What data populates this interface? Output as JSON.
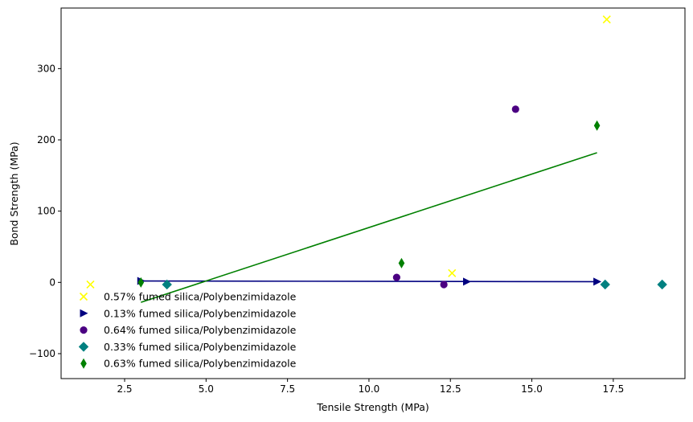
{
  "chart_data": {
    "type": "scatter",
    "title": "",
    "xlabel": "Tensile Strength (MPa)",
    "ylabel": "Bond Strength (MPa)",
    "xlim": [
      0.55,
      19.7
    ],
    "ylim": [
      -135,
      385
    ],
    "xticks": [
      2.5,
      5.0,
      7.5,
      10.0,
      12.5,
      15.0,
      17.5
    ],
    "xtick_labels": [
      "2.5",
      "5.0",
      "7.5",
      "10.0",
      "12.5",
      "15.0",
      "17.5"
    ],
    "yticks": [
      -100,
      0,
      100,
      200,
      300
    ],
    "ytick_labels": [
      "−100",
      "0",
      "100",
      "200",
      "300"
    ],
    "grid": false,
    "legend_position": "lower-left",
    "series": [
      {
        "name": "0.57% fumed silica/Polybenzimidazole",
        "marker": "x",
        "color": "#ffff00",
        "points": [
          [
            1.45,
            -3
          ],
          [
            12.55,
            13
          ],
          [
            17.3,
            369
          ]
        ]
      },
      {
        "name": "0.13% fumed silica/Polybenzimidazole",
        "marker": "triangle-right",
        "color": "#000080",
        "points": [
          [
            3.0,
            2
          ],
          [
            13.0,
            1
          ],
          [
            17.0,
            1
          ]
        ]
      },
      {
        "name": "0.64% fumed silica/Polybenzimidazole",
        "marker": "circle",
        "color": "#4b0082",
        "points": [
          [
            10.85,
            7
          ],
          [
            12.3,
            -3
          ],
          [
            14.5,
            243
          ]
        ]
      },
      {
        "name": "0.33% fumed silica/Polybenzimidazole",
        "marker": "diamond",
        "color": "#008080",
        "points": [
          [
            3.8,
            -3
          ],
          [
            17.25,
            -3
          ],
          [
            19.0,
            -3
          ]
        ]
      },
      {
        "name": "0.63% fumed silica/Polybenzimidazole",
        "marker": "thin-diamond",
        "color": "#008000",
        "points": [
          [
            3.0,
            0
          ],
          [
            11.0,
            27
          ],
          [
            17.0,
            220
          ]
        ]
      }
    ],
    "lines": [
      {
        "series": "0.13% fumed silica/Polybenzimidazole",
        "color": "#000080",
        "points": [
          [
            3.0,
            2
          ],
          [
            17.0,
            1
          ]
        ]
      },
      {
        "series": "0.63% fumed silica/Polybenzimidazole",
        "color": "#008000",
        "points": [
          [
            3.0,
            -28
          ],
          [
            17.0,
            182
          ]
        ]
      }
    ]
  }
}
